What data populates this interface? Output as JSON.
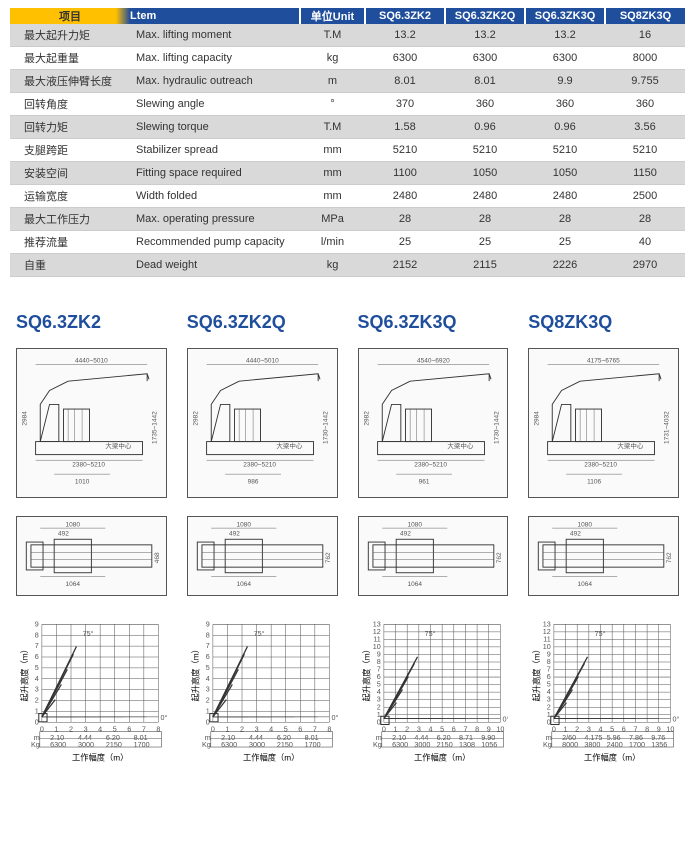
{
  "header": {
    "xm": "项目",
    "ltem": "Ltem",
    "unit": "单位Unit",
    "models": [
      "SQ6.3ZK2",
      "SQ6.3ZK2Q",
      "SQ6.3ZK3Q",
      "SQ8ZK3Q"
    ]
  },
  "rows": [
    {
      "cn": "最大起升力矩",
      "en": "Max. lifting moment",
      "unit": "T.M",
      "v": [
        "13.2",
        "13.2",
        "13.2",
        "16"
      ]
    },
    {
      "cn": "最大起重量",
      "en": "Max. lifting capacity",
      "unit": "kg",
      "v": [
        "6300",
        "6300",
        "6300",
        "8000"
      ]
    },
    {
      "cn": "最大液压伸臂长度",
      "en": "Max. hydraulic outreach",
      "unit": "m",
      "v": [
        "8.01",
        "8.01",
        "9.9",
        "9.755"
      ]
    },
    {
      "cn": "回转角度",
      "en": "Slewing angle",
      "unit": "°",
      "v": [
        "370",
        "360",
        "360",
        "360"
      ]
    },
    {
      "cn": "回转力矩",
      "en": "Slewing torque",
      "unit": "T.M",
      "v": [
        "1.58",
        "0.96",
        "0.96",
        "3.56"
      ]
    },
    {
      "cn": "支腿跨距",
      "en": "Stabilizer spread",
      "unit": "mm",
      "v": [
        "5210",
        "5210",
        "5210",
        "5210"
      ]
    },
    {
      "cn": "安装空间",
      "en": "Fitting space required",
      "unit": "mm",
      "v": [
        "1100",
        "1050",
        "1050",
        "1150"
      ]
    },
    {
      "cn": "运输宽度",
      "en": "Width folded",
      "unit": "mm",
      "v": [
        "2480",
        "2480",
        "2480",
        "2500"
      ]
    },
    {
      "cn": "最大工作压力",
      "en": "Max. operating pressure",
      "unit": "MPa",
      "v": [
        "28",
        "28",
        "28",
        "28"
      ]
    },
    {
      "cn": "推荐流量",
      "en": "Recommended pump capacity",
      "unit": "l/min",
      "v": [
        "25",
        "25",
        "25",
        "40"
      ]
    },
    {
      "cn": "自重",
      "en": "Dead weight",
      "unit": "kg",
      "v": [
        "2152",
        "2115",
        "2226",
        "2970"
      ]
    }
  ],
  "model_titles": [
    "SQ6.3ZK2",
    "SQ6.3ZK2Q",
    "SQ6.3ZK3Q",
    "SQ8ZK3Q"
  ],
  "side_dims": {
    "0": {
      "top": "4440~5010",
      "h": "2984",
      "w": "2380~5210",
      "w2": "1010",
      "lh": "1735~1442"
    },
    "1": {
      "top": "4440~5010",
      "h": "2982",
      "w": "2380~5210",
      "w2": "986",
      "lh": "1730~1442"
    },
    "2": {
      "top": "4540~6920",
      "h": "2982",
      "w": "2380~5210",
      "w2": "961",
      "lh": "1730~1442"
    },
    "3": {
      "top": "4175~6765",
      "h": "2984",
      "w": "2380~5210",
      "w2": "1106",
      "lh": "1731~4032"
    }
  },
  "top_dims": {
    "0": {
      "w1": "1080",
      "w2": "492",
      "w3": "1064",
      "h": "468"
    },
    "1": {
      "w1": "1080",
      "w2": "492",
      "w3": "1064",
      "h": "762"
    },
    "2": {
      "w1": "1080",
      "w2": "492",
      "w3": "1064",
      "h": "762"
    },
    "3": {
      "w1": "1080",
      "w2": "492",
      "w3": "1064",
      "h": "762"
    }
  },
  "charts": {
    "xlabel": "工作幅度（m）",
    "ylabel": "起升高度（m）",
    "angle": "75°",
    "0": {
      "xmax": 8,
      "ymax": 9,
      "loads": [
        [
          "2.10",
          "6300"
        ],
        [
          "4.44",
          "3000"
        ],
        [
          "6.20",
          "2150"
        ],
        [
          "8.01",
          "1700"
        ]
      ]
    },
    "1": {
      "xmax": 8,
      "ymax": 9,
      "loads": [
        [
          "2.10",
          "6300"
        ],
        [
          "4.44",
          "3000"
        ],
        [
          "6.20",
          "2150"
        ],
        [
          "8.01",
          "1700"
        ]
      ]
    },
    "2": {
      "xmax": 10,
      "ymax": 13,
      "loads": [
        [
          "2.10",
          "6300"
        ],
        [
          "4.44",
          "3000"
        ],
        [
          "6.20",
          "2150"
        ],
        [
          "8.71",
          "1308"
        ],
        [
          "9.90",
          "1056"
        ]
      ]
    },
    "3": {
      "xmax": 10,
      "ymax": 13,
      "loads": [
        [
          "2/60",
          "8000"
        ],
        [
          "4.175",
          "3800"
        ],
        [
          "5.96",
          "2400"
        ],
        [
          "7.86",
          "1700"
        ],
        [
          "9.76",
          "1356"
        ]
      ]
    }
  },
  "colors": {
    "blue": "#1f4e9c",
    "yellow": "#ffc000",
    "grey": "#d9d9d9"
  }
}
